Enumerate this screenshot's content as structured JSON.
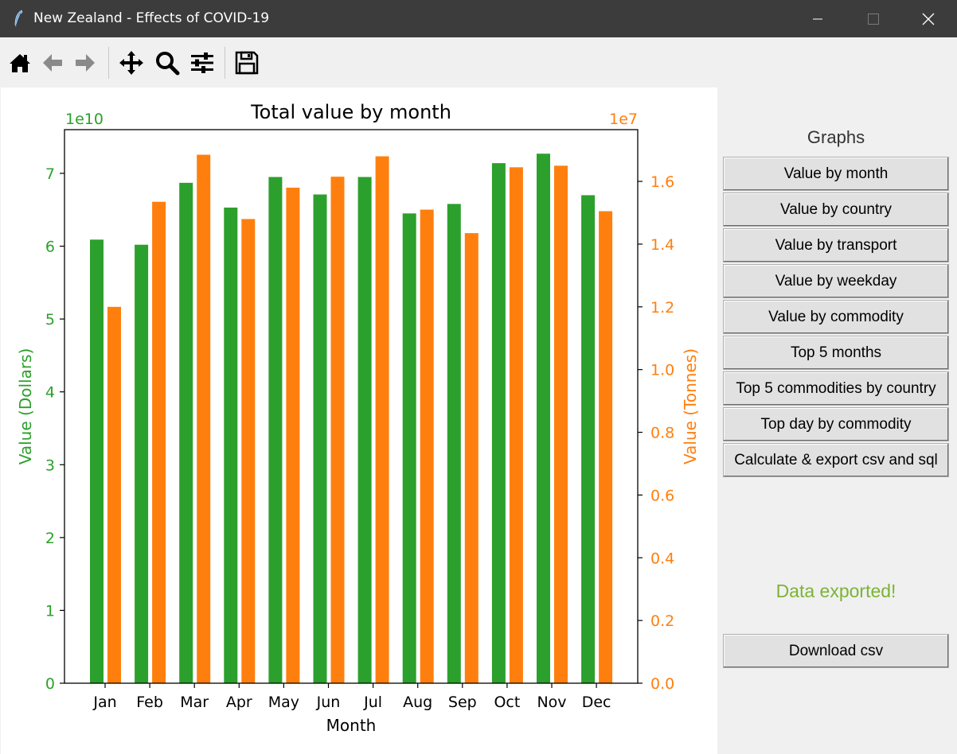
{
  "window": {
    "title": "New Zealand - Effects of COVID-19"
  },
  "toolbar": {
    "icons": [
      "home-icon",
      "back-arrow-icon",
      "forward-arrow-icon",
      "pan-icon",
      "zoom-icon",
      "configure-subplots-icon",
      "save-icon"
    ]
  },
  "chart_data": {
    "type": "bar",
    "title": "Total value by month",
    "xlabel": "Month",
    "ylabel": "Value (Dollars)",
    "y2label": "Value (Tonnes)",
    "y_offset_text": "1e10",
    "y2_offset_text": "1e7",
    "categories": [
      "Jan",
      "Feb",
      "Mar",
      "Apr",
      "May",
      "Jun",
      "Jul",
      "Aug",
      "Sep",
      "Oct",
      "Nov",
      "Dec"
    ],
    "series": [
      {
        "axis": "left",
        "color": "#2ca02c",
        "values": [
          6.09,
          6.02,
          6.87,
          6.53,
          6.95,
          6.71,
          6.95,
          6.45,
          6.58,
          7.14,
          7.27,
          6.7
        ]
      },
      {
        "axis": "right",
        "color": "#ff7f0e",
        "values": [
          1.2,
          1.535,
          1.685,
          1.48,
          1.58,
          1.615,
          1.68,
          1.51,
          1.435,
          1.645,
          1.65,
          1.505
        ]
      }
    ],
    "ylim": [
      0,
      7.6
    ],
    "y2lim": [
      0,
      1.765
    ],
    "yticks": [
      "0",
      "1",
      "2",
      "3",
      "4",
      "5",
      "6",
      "7"
    ],
    "y2ticks": [
      "0.0",
      "0.2",
      "0.4",
      "0.6",
      "0.8",
      "1.0",
      "1.2",
      "1.4",
      "1.6"
    ],
    "left_axis_color": "#2ca02c",
    "right_axis_color": "#ff7f0e"
  },
  "sidepanel": {
    "heading": "Graphs",
    "buttons": [
      "Value by month",
      "Value by country",
      "Value by transport",
      "Value by weekday",
      "Value by commodity",
      "Top 5 months",
      "Top 5 commodities by country",
      "Top day by commodity",
      "Calculate & export csv and sql"
    ],
    "status": "Data exported!",
    "status_color": "#7cb335",
    "download_label": "Download csv"
  }
}
